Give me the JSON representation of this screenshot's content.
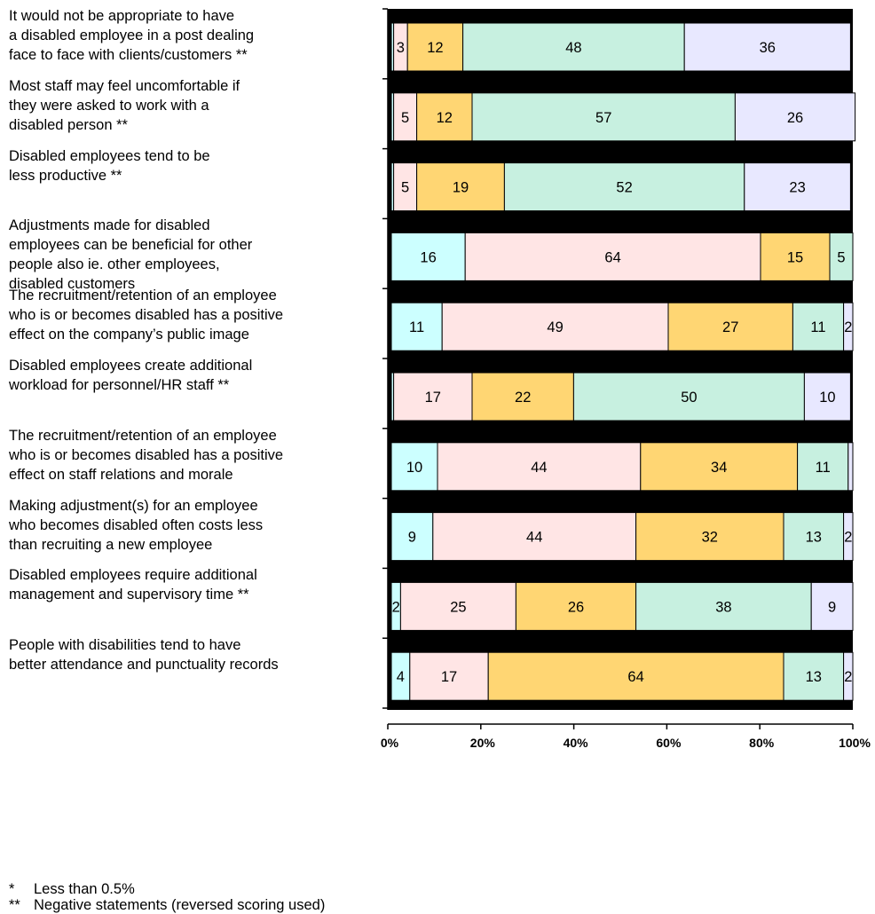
{
  "chart_data": {
    "type": "bar",
    "orientation": "horizontal",
    "stacked": true,
    "percent": true,
    "xlim": [
      0,
      100
    ],
    "x_ticks": [
      "0%",
      "20%",
      "40%",
      "60%",
      "80%",
      "100%"
    ],
    "grid": false,
    "legend": null,
    "categories": [
      "It would not be appropriate to have a disabled employee in a post dealing face to face with clients/customers **",
      "Most staff may feel uncomfortable if they were asked to work with a disabled person **",
      "Disabled employees tend to be less productive **",
      "Adjustments made for disabled employees can be beneficial for other people also ie. other employees, disabled customers",
      "The recruitment/retention of an employee who is or becomes disabled has a positive effect on the company’s public image",
      "Disabled employees create additional workload for personnel/HR staff **",
      "The recruitment/retention of an employee who is or becomes disabled has a positive effect on staff relations and morale",
      "Making adjustment(s) for an employee who becomes disabled often costs less than recruiting a new employee",
      "Disabled employees require additional management and supervisory time **",
      "People with disabilities tend to have better attendance and punctuality records"
    ],
    "category_lines": [
      [
        "It would not be appropriate to have",
        "a disabled employee in a post dealing",
        "face to face with clients/customers **"
      ],
      [
        "Most staff may feel uncomfortable if",
        "they were asked to work with a",
        "disabled person **"
      ],
      [
        "Disabled employees tend to be",
        "less productive **"
      ],
      [
        "Adjustments made for disabled",
        "employees can be beneficial for other",
        "people also ie. other employees,",
        "disabled customers"
      ],
      [
        "The recruitment/retention of an employee",
        "who is or becomes disabled has a positive",
        "effect on the company’s public image"
      ],
      [
        "Disabled employees create additional",
        "workload for personnel/HR staff **"
      ],
      [
        "The recruitment/retention of an employee",
        "who is or becomes disabled has a positive",
        "effect on staff relations and morale"
      ],
      [
        "Making adjustment(s) for an employee",
        "who becomes disabled often costs less",
        "than recruiting a new employee"
      ],
      [
        "Disabled employees require additional",
        "management and supervisory time **"
      ],
      [
        "People with disabilities tend to have",
        "better attendance and punctuality records"
      ]
    ],
    "colors": {
      "cyan": "#ccffff",
      "pink": "#ffe5e5",
      "orange": "#ffd673",
      "green": "#c7f0e0",
      "lavender": "#e8e8ff",
      "separator": "#000000"
    },
    "rows": [
      {
        "segments": [
          {
            "value": 0.5,
            "color": "cyan",
            "label": ""
          },
          {
            "value": 3,
            "color": "pink",
            "label": "3"
          },
          {
            "value": 12,
            "color": "orange",
            "label": "12"
          },
          {
            "value": 48,
            "color": "green",
            "label": "48"
          },
          {
            "value": 36,
            "color": "lavender",
            "label": "36"
          }
        ]
      },
      {
        "segments": [
          {
            "value": 0.5,
            "color": "cyan",
            "label": ""
          },
          {
            "value": 5,
            "color": "pink",
            "label": "5"
          },
          {
            "value": 12,
            "color": "orange",
            "label": "12"
          },
          {
            "value": 57,
            "color": "green",
            "label": "57"
          },
          {
            "value": 26,
            "color": "lavender",
            "label": "26"
          }
        ]
      },
      {
        "segments": [
          {
            "value": 0.5,
            "color": "cyan",
            "label": ""
          },
          {
            "value": 5,
            "color": "pink",
            "label": "5"
          },
          {
            "value": 19,
            "color": "orange",
            "label": "19"
          },
          {
            "value": 52,
            "color": "green",
            "label": "52"
          },
          {
            "value": 23,
            "color": "lavender",
            "label": "23"
          }
        ]
      },
      {
        "segments": [
          {
            "value": 16,
            "color": "cyan",
            "label": "16"
          },
          {
            "value": 64,
            "color": "pink",
            "label": "64"
          },
          {
            "value": 15,
            "color": "orange",
            "label": "15"
          },
          {
            "value": 5,
            "color": "green",
            "label": "5"
          }
        ]
      },
      {
        "segments": [
          {
            "value": 11,
            "color": "cyan",
            "label": "11"
          },
          {
            "value": 49,
            "color": "pink",
            "label": "49"
          },
          {
            "value": 27,
            "color": "orange",
            "label": "27"
          },
          {
            "value": 11,
            "color": "green",
            "label": "11"
          },
          {
            "value": 2,
            "color": "lavender",
            "label": "2"
          }
        ]
      },
      {
        "segments": [
          {
            "value": 0.5,
            "color": "cyan",
            "label": ""
          },
          {
            "value": 17,
            "color": "pink",
            "label": "17"
          },
          {
            "value": 22,
            "color": "orange",
            "label": "22"
          },
          {
            "value": 50,
            "color": "green",
            "label": "50"
          },
          {
            "value": 10,
            "color": "lavender",
            "label": "10"
          }
        ]
      },
      {
        "segments": [
          {
            "value": 10,
            "color": "cyan",
            "label": "10"
          },
          {
            "value": 44,
            "color": "pink",
            "label": "44"
          },
          {
            "value": 34,
            "color": "orange",
            "label": "34"
          },
          {
            "value": 11,
            "color": "green",
            "label": "11"
          },
          {
            "value": 1,
            "color": "lavender",
            "label": ""
          }
        ]
      },
      {
        "segments": [
          {
            "value": 9,
            "color": "cyan",
            "label": "9"
          },
          {
            "value": 44,
            "color": "pink",
            "label": "44"
          },
          {
            "value": 32,
            "color": "orange",
            "label": "32"
          },
          {
            "value": 13,
            "color": "green",
            "label": "13"
          },
          {
            "value": 2,
            "color": "lavender",
            "label": "2"
          }
        ]
      },
      {
        "segments": [
          {
            "value": 2,
            "color": "cyan",
            "label": "2"
          },
          {
            "value": 25,
            "color": "pink",
            "label": "25"
          },
          {
            "value": 26,
            "color": "orange",
            "label": "26"
          },
          {
            "value": 38,
            "color": "green",
            "label": "38"
          },
          {
            "value": 9,
            "color": "lavender",
            "label": "9"
          }
        ]
      },
      {
        "segments": [
          {
            "value": 4,
            "color": "cyan",
            "label": "4"
          },
          {
            "value": 17,
            "color": "pink",
            "label": "17"
          },
          {
            "value": 64,
            "color": "orange",
            "label": "64"
          },
          {
            "value": 13,
            "color": "green",
            "label": "13"
          },
          {
            "value": 2,
            "color": "lavender",
            "label": "2"
          }
        ]
      }
    ]
  },
  "footnotes": [
    {
      "mark": "*",
      "text": "Less than 0.5%"
    },
    {
      "mark": "**",
      "text": "Negative statements (reversed scoring used)"
    }
  ]
}
